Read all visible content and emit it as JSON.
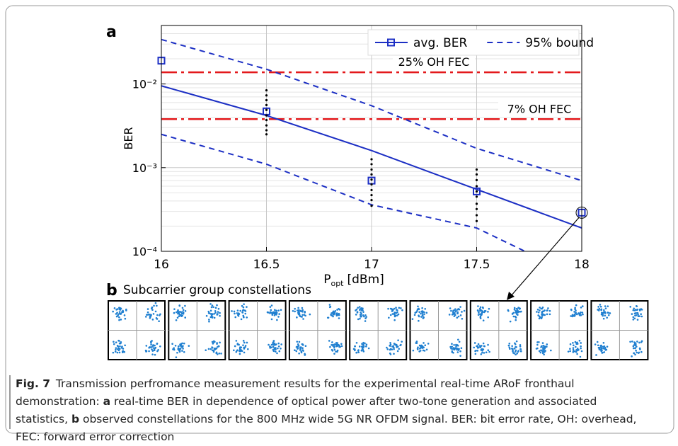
{
  "panel_a": "a",
  "panel_b": {
    "label": "b",
    "title": "Subcarrier group constellations"
  },
  "chart_data": {
    "type": "line",
    "ylabel": "BER",
    "xlabel": [
      "P",
      "opt",
      "[dBm]"
    ],
    "xlim": [
      16,
      18
    ],
    "ylim": [
      0.0001,
      0.05
    ],
    "log_y": true,
    "xticks": [
      16,
      16.5,
      17,
      17.5,
      18
    ],
    "yticks": [
      {
        "value": 0.0001,
        "label": "10⁻⁴"
      },
      {
        "value": 0.001,
        "label": "10⁻³"
      },
      {
        "value": 0.01,
        "label": "10⁻²"
      }
    ],
    "grid": true,
    "minor_grid": true,
    "legend": "upper right",
    "thresholds": [
      {
        "name": "25% OH FEC",
        "value": 0.0138,
        "color": "#e3191c"
      },
      {
        "name": "7% OH FEC",
        "value": 0.0038,
        "color": "#e3191c"
      }
    ],
    "series": [
      {
        "name": "avg. BER",
        "style": "markers",
        "color": "#1c2fc4",
        "x": [
          16,
          16.5,
          17,
          17.5,
          18
        ],
        "values": [
          0.019,
          0.0047,
          0.0007,
          0.00052,
          0.00029
        ]
      },
      {
        "style": "solid",
        "color": "#1c2fc4",
        "x": [
          16,
          16.5,
          17,
          17.5,
          18
        ],
        "values": [
          0.0095,
          0.0042,
          0.0016,
          0.00055,
          0.00019
        ]
      },
      {
        "name": "95% bound",
        "style": "dashed",
        "color": "#1c2fc4",
        "x": [
          16,
          16.5,
          17,
          17.5,
          18
        ],
        "values": [
          0.034,
          0.015,
          0.0055,
          0.0017,
          0.0007
        ]
      },
      {
        "style": "dashed",
        "color": "#1c2fc4",
        "x": [
          16,
          16.5,
          17,
          17.5,
          17.73
        ],
        "values": [
          0.0025,
          0.0011,
          0.00036,
          0.00019,
          0.0001
        ]
      },
      {
        "style": "dots",
        "color": "#000000",
        "x": [
          16.5,
          16.5,
          16.5,
          16.5,
          16.5,
          16.5,
          16.5,
          16.5,
          16.5,
          16.5,
          17,
          17,
          17,
          17,
          17,
          17,
          17,
          17,
          17,
          17,
          17.5,
          17.5,
          17.5,
          17.5,
          17.5,
          17.5,
          17.5,
          17.5,
          17.5,
          17.5
        ],
        "values": [
          0.0084,
          0.0073,
          0.0064,
          0.0056,
          0.0049,
          0.0042,
          0.0037,
          0.0032,
          0.0028,
          0.0025,
          0.00126,
          0.0011,
          0.00095,
          0.00083,
          0.00072,
          0.00063,
          0.00054,
          0.00047,
          0.00041,
          0.00035,
          0.00095,
          0.00083,
          0.00071,
          0.0006,
          0.00052,
          0.00045,
          0.00037,
          0.00032,
          0.00027,
          0.00023
        ]
      }
    ]
  },
  "caption": {
    "label": "Fig. 7",
    "parts": [
      "Transmission perfromance measurement results for the experimental real-time ARoF fronthaul demonstration: ",
      "a",
      " real-time BER in dependence of optical power after two-tone generation and associated statistics, ",
      "b",
      " observed constellations for the 800 MHz wide 5G NR OFDM signal. BER: bit error rate, OH: overhead, FEC: forward error correction"
    ]
  }
}
